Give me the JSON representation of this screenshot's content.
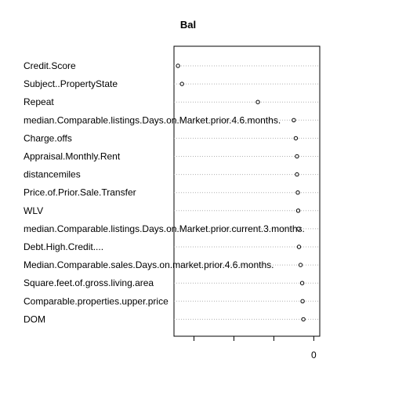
{
  "chart_data": {
    "type": "dotchart",
    "title": "Bal",
    "categories": [
      "Credit.Score",
      "Subject..PropertyState",
      "Repeat",
      "median.Comparable.listings.Days.on.Market.prior.4.6.months.",
      "Charge.offs",
      "Appraisal.Monthly.Rent",
      "distancemiles",
      "Price.of.Prior.Sale.Transfer",
      "WLV",
      "median.Comparable.listings.Days.on.Market.prior.current.3.months.",
      "Debt.High.Credit....",
      "Median.Comparable.sales.Days.on.market.prior.4.6.months.",
      "Square.feet.of.gross.living.area",
      "Comparable.properties.upper.price",
      "DOM"
    ],
    "values": [
      -3400,
      -3300,
      -1400,
      -500,
      -450,
      -420,
      -420,
      -400,
      -390,
      -380,
      -370,
      -330,
      -290,
      -280,
      -260
    ],
    "xlim": [
      -3500,
      150
    ],
    "ticks": [
      -3000,
      -2000,
      -1000,
      0
    ],
    "tick_labels": [
      "",
      "",
      "",
      "0"
    ],
    "grid": "dotted horizontal"
  }
}
